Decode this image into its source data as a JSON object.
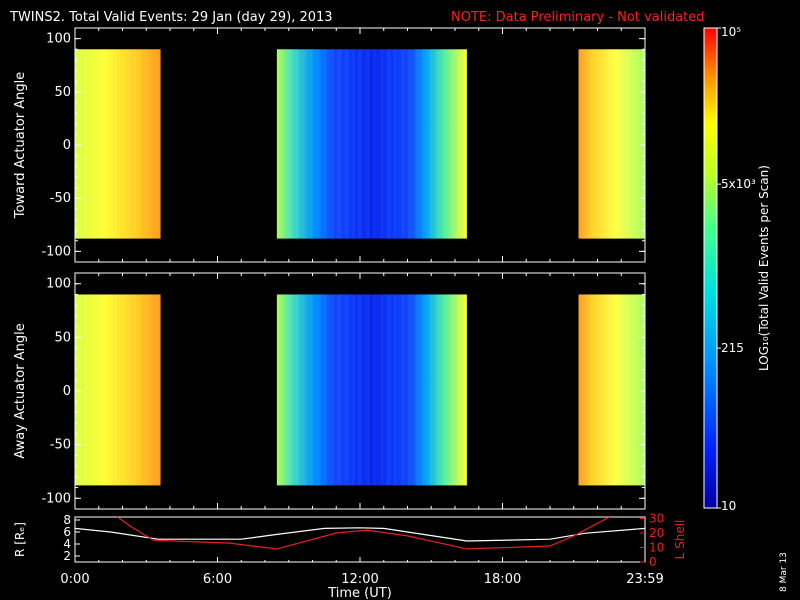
{
  "header": {
    "title": "TWINS2. Total Valid Events: 29 Jan (day  29), 2013",
    "note": "NOTE: Data Preliminary - Not validated"
  },
  "stamp": "8 Mar 13",
  "colors": {
    "background": "#000000",
    "text": "#ffffff",
    "note": "#ff2020",
    "lshell": "#e82020",
    "r_line": "#ffffff"
  },
  "chart_data": [
    {
      "type": "heatmap",
      "id": "toward",
      "ylabel": "Toward Actuator Angle",
      "ylim": [
        -110,
        110
      ],
      "yticks": [
        "100",
        "50",
        "0",
        "-50",
        "-100"
      ],
      "angle_range": [
        -88,
        90
      ],
      "x_time_range_hours": [
        0,
        24
      ],
      "blocks": [
        {
          "start_hours": 0.0,
          "end_hours": 3.6,
          "pattern": "yellow-orange"
        },
        {
          "start_hours": 8.5,
          "end_hours": 16.5,
          "pattern": "yellow-blue-yellow"
        },
        {
          "start_hours": 21.2,
          "end_hours": 24.0,
          "pattern": "yellow-orange"
        }
      ]
    },
    {
      "type": "heatmap",
      "id": "away",
      "ylabel": "Away Actuator Angle",
      "ylim": [
        -110,
        110
      ],
      "yticks": [
        "100",
        "50",
        "0",
        "-50",
        "-100"
      ],
      "angle_range": [
        -88,
        90
      ],
      "x_time_range_hours": [
        0,
        24
      ],
      "blocks": [
        {
          "start_hours": 0.0,
          "end_hours": 3.6,
          "pattern": "yellow-orange"
        },
        {
          "start_hours": 8.5,
          "end_hours": 16.5,
          "pattern": "yellow-blue-yellow"
        },
        {
          "start_hours": 21.2,
          "end_hours": 24.0,
          "pattern": "yellow-orange"
        }
      ]
    },
    {
      "type": "line",
      "id": "orbit",
      "xlabel": "Time (UT)",
      "ylabel_left": "R [Rₑ]",
      "ylabel_right": "L Shell",
      "x_ticks": [
        "0:00",
        "6:00",
        "12:00",
        "18:00",
        "23:59"
      ],
      "left_yticks": [
        "8",
        "6",
        "4",
        "2"
      ],
      "right_yticks": [
        "30",
        "20",
        "10",
        "0"
      ],
      "left_ylim": [
        1,
        8.5
      ],
      "right_ylim": [
        0,
        31
      ],
      "series": [
        {
          "name": "R",
          "x": [
            0,
            1.5,
            3.5,
            7.0,
            8.5,
            10.5,
            12.0,
            13.0,
            16.5,
            20.0,
            21.5,
            24.0
          ],
          "y": [
            6.6,
            6.0,
            4.8,
            4.8,
            5.6,
            6.6,
            6.7,
            6.6,
            4.5,
            4.8,
            5.8,
            6.6
          ]
        },
        {
          "name": "L Shell",
          "x": [
            1.8,
            2.3,
            3.3,
            6.5,
            8.5,
            11.0,
            12.3,
            14.0,
            16.5,
            20.0,
            21.0,
            22.5
          ],
          "y": [
            31,
            25,
            15,
            13,
            9,
            20,
            22,
            18,
            9,
            11,
            18,
            31
          ]
        }
      ]
    },
    {
      "type": "colorbar",
      "id": "colorbar",
      "label": "LOG₁₀(Total Valid Events per Scan)",
      "labels": [
        {
          "text": "10⁵",
          "value": 100000
        },
        {
          "text": "5x10³",
          "value": 5000
        },
        {
          "text": "215",
          "value": 215
        },
        {
          "text": "10",
          "value": 10
        }
      ],
      "range": [
        10,
        100000
      ],
      "scale": "log"
    }
  ]
}
